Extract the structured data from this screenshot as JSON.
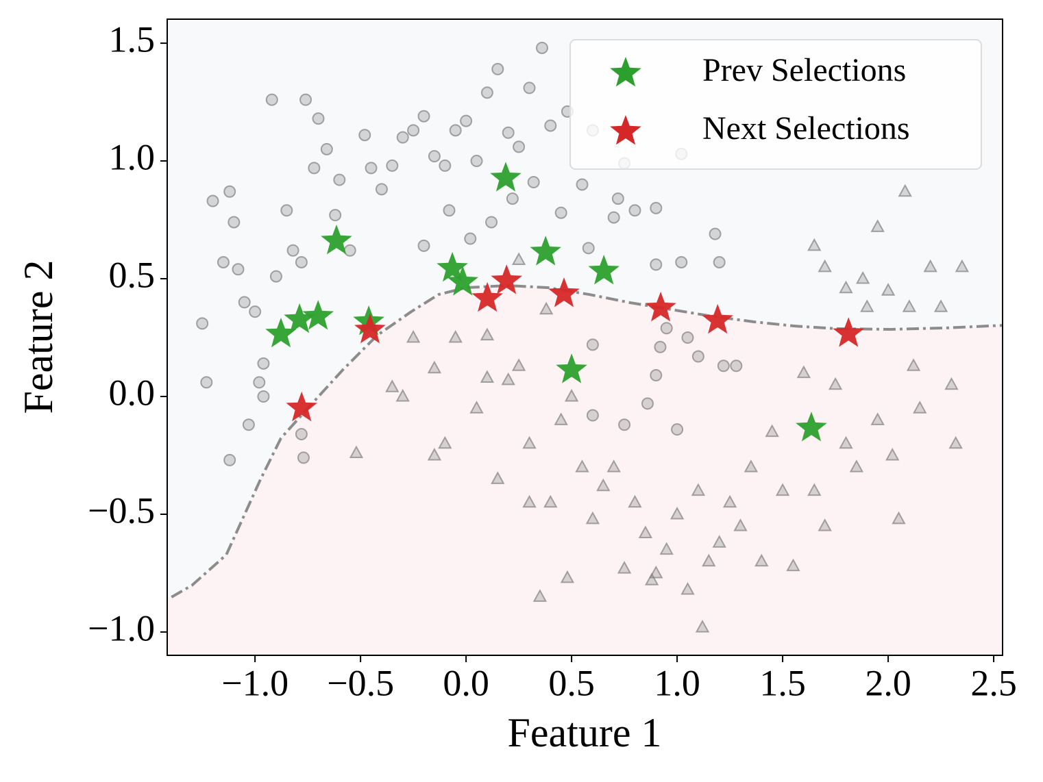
{
  "chart_data": {
    "type": "scatter",
    "xlabel": "Feature 1",
    "ylabel": "Feature 2",
    "xlim": [
      -1.416,
      2.542
    ],
    "ylim": [
      -1.099,
      1.602
    ],
    "xticks": [
      {
        "value": -1.0,
        "label": "−1.0"
      },
      {
        "value": -0.5,
        "label": "−0.5"
      },
      {
        "value": 0.0,
        "label": "0.0"
      },
      0.5,
      {
        "value": 1.0,
        "label": "1.0"
      },
      1.5,
      {
        "value": 2.0,
        "label": "2.0"
      },
      2.5
    ],
    "yticks": [
      {
        "value": -1.0,
        "label": "−1.0"
      },
      {
        "value": -0.5,
        "label": "−0.5"
      },
      {
        "value": 0.0,
        "label": "0.0"
      },
      0.5,
      {
        "value": 1.0,
        "label": "1.0"
      },
      1.5
    ],
    "legend_loc": "upper right",
    "upper_region_color": "#f7f9fb",
    "lower_region_color": "#fdf3f4",
    "boundary": {
      "color": "#8c8c8c",
      "x": [
        -1.396,
        -1.299,
        -1.136,
        -0.974,
        -0.877,
        -0.747,
        -0.584,
        -0.422,
        -0.26,
        -0.13,
        0.0,
        0.195,
        0.39,
        0.584,
        0.779,
        0.974,
        1.169,
        1.364,
        1.558,
        1.753,
        2.013,
        2.273,
        2.542
      ],
      "y": [
        -0.852,
        -0.802,
        -0.672,
        -0.352,
        -0.177,
        -0.047,
        0.113,
        0.259,
        0.36,
        0.433,
        0.462,
        0.471,
        0.462,
        0.433,
        0.398,
        0.369,
        0.34,
        0.317,
        0.299,
        0.288,
        0.285,
        0.291,
        0.302
      ]
    },
    "points": [
      {
        "marker": "circle",
        "color": "#808080",
        "x": [
          -1.23,
          -1.25,
          -1.2,
          -1.15,
          -1.12,
          -1.1,
          -1.08,
          -1.05,
          -1.0,
          -0.98,
          -0.96,
          -0.92,
          -0.9,
          -0.85,
          -0.82,
          -0.78,
          -0.76,
          -0.7,
          -0.72,
          -0.66,
          -0.62,
          -0.6,
          -0.55,
          -0.48,
          -0.45,
          -0.4,
          -0.35,
          -0.3,
          -0.25,
          -0.2,
          -0.15,
          -0.1,
          -0.05,
          0.0,
          0.05,
          0.1,
          0.15,
          0.2,
          0.25,
          0.3,
          0.36,
          0.4,
          0.48,
          0.6,
          -0.2,
          -0.08,
          0.02,
          0.12,
          0.22,
          0.32,
          0.45,
          0.55,
          0.7,
          0.8,
          0.9,
          1.02,
          1.18,
          1.2,
          0.58,
          0.72,
          0.92,
          0.9,
          0.95,
          1.05,
          1.1,
          1.22,
          1.28,
          0.6,
          0.86,
          1.0,
          0.75,
          0.6,
          -0.78,
          -0.77,
          -1.12,
          -1.03,
          -0.96,
          1.02,
          0.75,
          0.9
        ],
        "y": [
          0.06,
          0.31,
          0.83,
          0.57,
          0.87,
          0.74,
          0.54,
          0.4,
          0.36,
          0.06,
          0.14,
          1.26,
          0.51,
          0.79,
          0.62,
          0.57,
          1.26,
          1.18,
          0.97,
          1.05,
          0.77,
          0.92,
          0.62,
          1.11,
          0.97,
          0.88,
          0.98,
          1.1,
          1.13,
          1.19,
          1.02,
          0.98,
          1.13,
          1.17,
          1.0,
          1.29,
          1.39,
          1.12,
          1.06,
          1.31,
          1.48,
          1.15,
          1.21,
          1.13,
          0.64,
          0.79,
          0.67,
          0.74,
          0.84,
          0.91,
          0.78,
          0.9,
          0.76,
          0.79,
          0.56,
          0.57,
          0.69,
          0.57,
          0.63,
          0.84,
          0.21,
          0.09,
          0.29,
          0.25,
          0.17,
          0.13,
          0.13,
          0.22,
          -0.03,
          -0.14,
          -0.12,
          -0.08,
          -0.16,
          -0.26,
          -0.27,
          -0.12,
          0.0,
          1.03,
          0.99,
          0.8
        ]
      },
      {
        "marker": "triangle",
        "color": "#808080",
        "x": [
          -0.52,
          -0.35,
          -0.25,
          -0.15,
          -0.1,
          -0.05,
          0.05,
          0.1,
          0.2,
          0.25,
          0.3,
          0.4,
          0.45,
          0.5,
          0.55,
          0.6,
          0.65,
          0.7,
          0.75,
          0.8,
          0.85,
          0.9,
          0.95,
          1.0,
          1.05,
          1.1,
          1.12,
          1.2,
          1.25,
          1.3,
          1.35,
          1.4,
          1.45,
          1.5,
          1.55,
          1.6,
          1.65,
          1.7,
          1.75,
          1.8,
          1.85,
          1.9,
          1.95,
          2.0,
          2.02,
          2.05,
          2.08,
          2.1,
          2.12,
          2.15,
          2.2,
          2.25,
          2.3,
          2.35,
          2.32,
          1.95,
          1.7,
          1.65,
          1.8,
          1.88,
          0.15,
          0.3,
          0.35,
          0.48,
          0.38,
          0.25,
          0.1,
          -0.15,
          -0.3,
          0.88,
          1.15
        ],
        "y": [
          -0.24,
          0.04,
          0.25,
          0.12,
          -0.2,
          0.25,
          -0.05,
          0.08,
          0.07,
          0.13,
          -0.2,
          -0.45,
          -0.1,
          0.0,
          -0.3,
          -0.52,
          -0.38,
          -0.3,
          -0.73,
          -0.45,
          -0.58,
          -0.75,
          -0.65,
          -0.5,
          -0.82,
          -0.4,
          -0.98,
          -0.62,
          -0.45,
          -0.55,
          -0.3,
          -0.7,
          -0.15,
          -0.4,
          -0.72,
          0.1,
          -0.4,
          -0.55,
          0.05,
          -0.2,
          -0.3,
          0.38,
          -0.1,
          0.45,
          -0.25,
          -0.52,
          0.87,
          0.38,
          0.13,
          -0.05,
          0.55,
          0.38,
          0.05,
          0.55,
          -0.2,
          0.72,
          0.55,
          0.64,
          0.46,
          0.5,
          -0.35,
          -0.45,
          -0.85,
          -0.77,
          0.37,
          0.58,
          0.26,
          -0.25,
          0.0,
          -0.78,
          -0.7
        ]
      }
    ],
    "series": [
      {
        "name": "Prev Selections",
        "color": "#2ca02c",
        "marker": "star",
        "x": [
          0.188,
          -0.614,
          -0.065,
          -0.016,
          0.377,
          0.653,
          -0.461,
          -0.701,
          -0.789,
          -0.877,
          0.5,
          1.636
        ],
        "y": [
          0.927,
          0.66,
          0.544,
          0.485,
          0.613,
          0.532,
          0.317,
          0.34,
          0.326,
          0.265,
          0.113,
          -0.134
        ]
      },
      {
        "name": "Next Selections",
        "color": "#d62728",
        "marker": "star",
        "x": [
          0.192,
          0.101,
          0.464,
          0.922,
          1.192,
          1.812,
          -0.455,
          -0.779
        ],
        "y": [
          0.491,
          0.416,
          0.436,
          0.375,
          0.323,
          0.267,
          0.282,
          -0.049
        ]
      }
    ]
  }
}
